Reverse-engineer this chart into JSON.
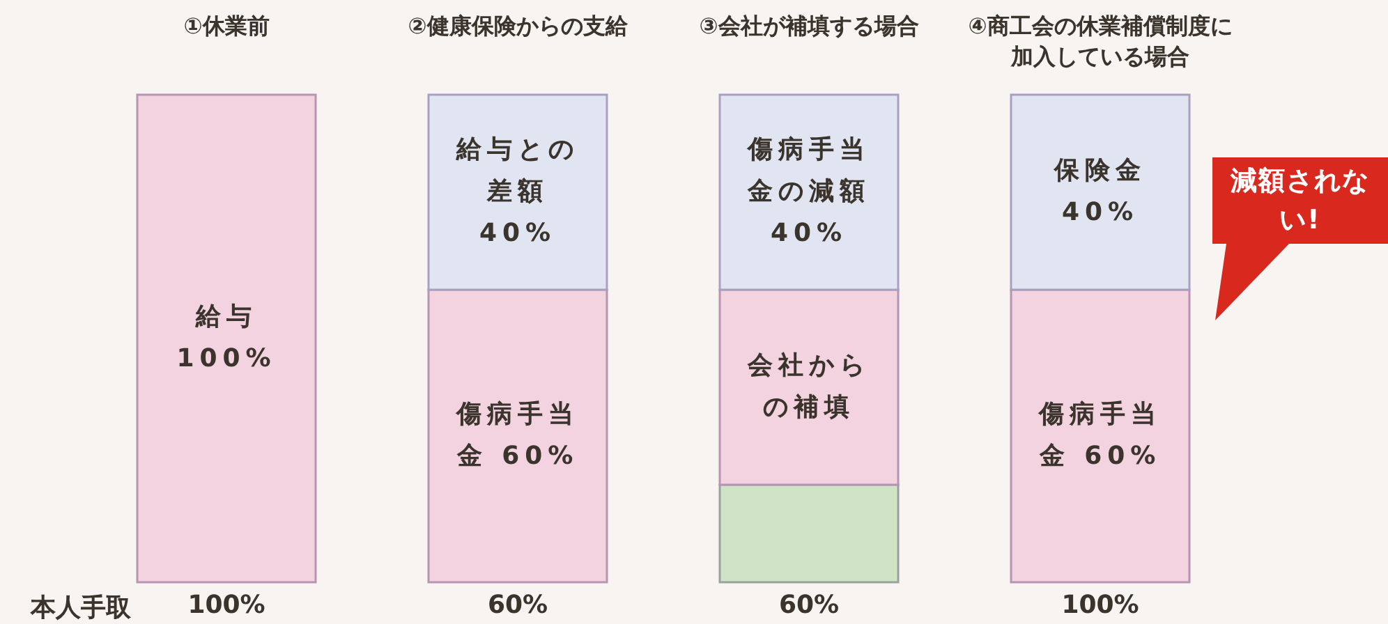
{
  "chart_data": {
    "type": "bar",
    "stacked": true,
    "categories": [
      "①休業前",
      "②健康保険からの支給",
      "③会社が補填する場合",
      "④商工会の休業補償制度に加入している場合"
    ],
    "ylim": [
      0,
      100
    ],
    "series": [
      {
        "color": "#cfe3c6",
        "values": [
          null,
          null,
          20,
          null
        ],
        "value_labels": [
          null,
          null,
          null,
          null
        ]
      },
      {
        "color": "#f3d3df",
        "values": [
          100,
          60,
          40,
          60
        ],
        "value_labels": [
          "給与 100%",
          "傷病手当金 60%",
          "会社からの補填",
          "傷病手当金 60%"
        ]
      },
      {
        "color": "#e1e4f1",
        "values": [
          null,
          40,
          40,
          40
        ],
        "value_labels": [
          null,
          "給与との差額 40%",
          "傷病手当金の減額 40%",
          "保険金 40%"
        ]
      }
    ],
    "annotations": [
      "本人手取",
      "100%",
      "60%",
      "60%",
      "100%",
      "減額されない!"
    ]
  }
}
